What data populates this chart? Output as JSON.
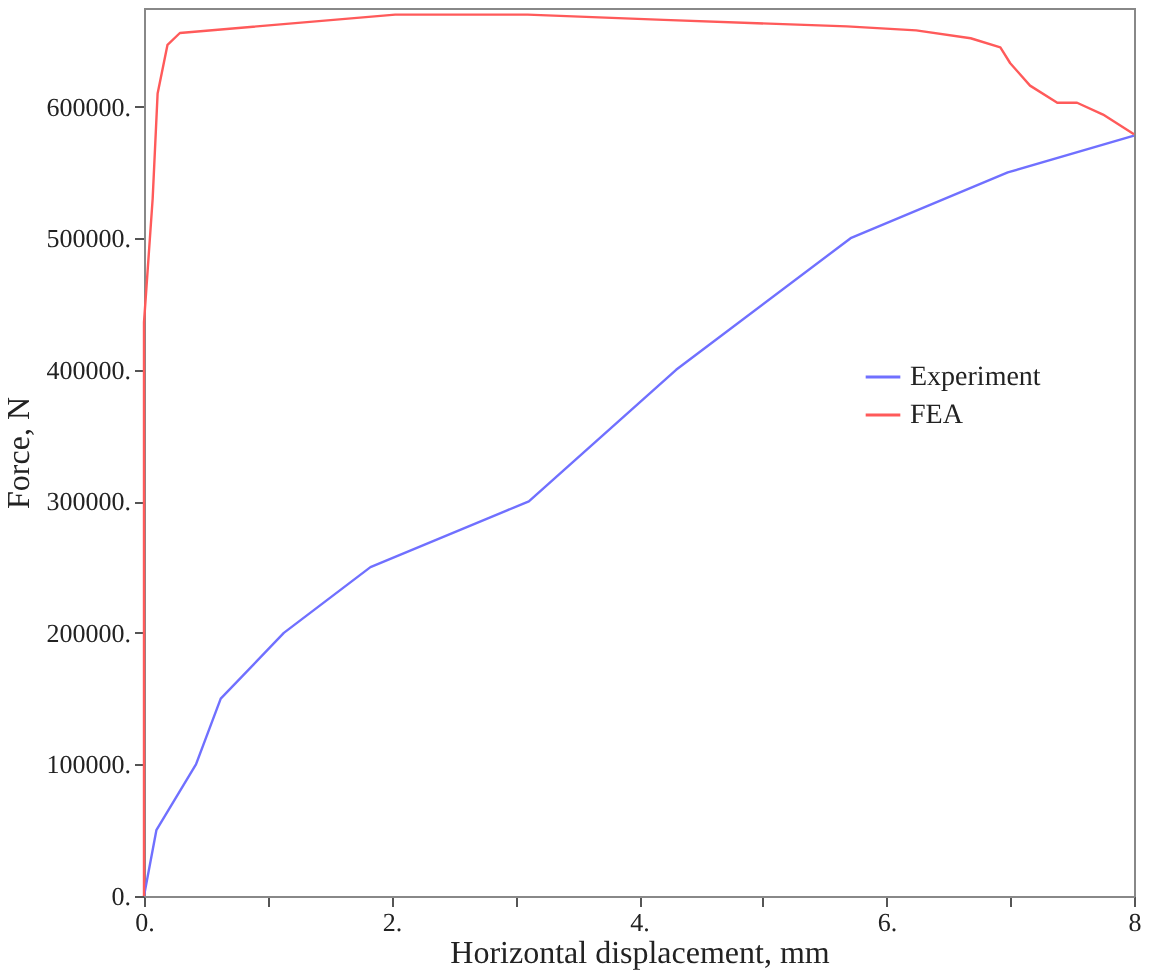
{
  "chart_data": {
    "type": "line",
    "xlabel": "Horizontal displacement, mm",
    "ylabel": "Force, N",
    "xlim": [
      0,
      8
    ],
    "ylim": [
      0,
      675000
    ],
    "xticks": [
      {
        "value": 0,
        "label": "0."
      },
      {
        "value": 1,
        "label": null
      },
      {
        "value": 2,
        "label": "2."
      },
      {
        "value": 3,
        "label": null
      },
      {
        "value": 4,
        "label": "4."
      },
      {
        "value": 5,
        "label": null
      },
      {
        "value": 6,
        "label": "6."
      },
      {
        "value": 7,
        "label": null
      },
      8
    ],
    "yticks": [
      {
        "value": 0,
        "label": "0."
      },
      {
        "value": 100000,
        "label": "100000."
      },
      {
        "value": 200000,
        "label": "200000."
      },
      {
        "value": 300000,
        "label": "300000."
      },
      {
        "value": 400000,
        "label": "400000."
      },
      {
        "value": 500000,
        "label": "500000."
      },
      {
        "value": 600000,
        "label": "600000."
      }
    ],
    "grid": false,
    "legend": "right",
    "marker": "none",
    "line_style": "solid",
    "series": [
      {
        "name": "Experiment",
        "color": "#7070ff",
        "x": [
          0,
          0.1,
          0.42,
          0.62,
          1.13,
          1.83,
          3.11,
          4.3,
          5.71,
          6.98,
          8
        ],
        "values": [
          0,
          50000,
          100000,
          150000,
          200000,
          250000,
          300000,
          400000,
          500000,
          550000,
          578000
        ]
      },
      {
        "name": "FEA",
        "color": "#ff5a5a",
        "x": [
          0,
          0,
          0,
          0.07,
          0.11,
          0.19,
          0.29,
          2.03,
          3.1,
          4.2,
          5.68,
          6.24,
          6.68,
          6.92,
          7.0,
          7.16,
          7.38,
          7.54,
          7.75,
          8
        ],
        "values": [
          0,
          256000,
          436000,
          530000,
          610000,
          647000,
          656000,
          670000,
          670000,
          666000,
          661000,
          658000,
          652000,
          645000,
          633000,
          616000,
          603000,
          603000,
          594000,
          579000
        ]
      }
    ]
  }
}
